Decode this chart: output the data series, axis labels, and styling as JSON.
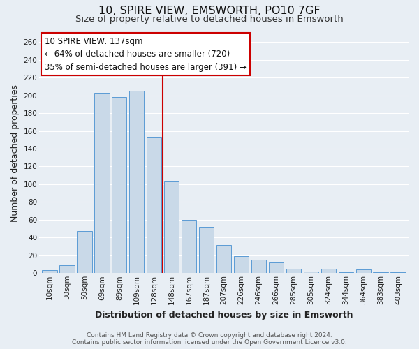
{
  "title": "10, SPIRE VIEW, EMSWORTH, PO10 7GF",
  "subtitle": "Size of property relative to detached houses in Emsworth",
  "xlabel": "Distribution of detached houses by size in Emsworth",
  "ylabel": "Number of detached properties",
  "bar_labels": [
    "10sqm",
    "30sqm",
    "50sqm",
    "69sqm",
    "89sqm",
    "109sqm",
    "128sqm",
    "148sqm",
    "167sqm",
    "187sqm",
    "207sqm",
    "226sqm",
    "246sqm",
    "266sqm",
    "285sqm",
    "305sqm",
    "324sqm",
    "344sqm",
    "364sqm",
    "383sqm",
    "403sqm"
  ],
  "bar_values": [
    3,
    9,
    47,
    203,
    198,
    205,
    153,
    103,
    60,
    52,
    32,
    19,
    15,
    12,
    5,
    2,
    5,
    1,
    4,
    1,
    1
  ],
  "bar_color": "#c9d9e8",
  "bar_edge_color": "#5b9bd5",
  "highlight_bar_index": 6,
  "highlight_line_color": "#cc0000",
  "ylim": [
    0,
    270
  ],
  "yticks": [
    0,
    20,
    40,
    60,
    80,
    100,
    120,
    140,
    160,
    180,
    200,
    220,
    240,
    260
  ],
  "annotation_title": "10 SPIRE VIEW: 137sqm",
  "annotation_line1": "← 64% of detached houses are smaller (720)",
  "annotation_line2": "35% of semi-detached houses are larger (391) →",
  "annotation_box_color": "#ffffff",
  "annotation_box_edge": "#cc0000",
  "footer_line1": "Contains HM Land Registry data © Crown copyright and database right 2024.",
  "footer_line2": "Contains public sector information licensed under the Open Government Licence v3.0.",
  "background_color": "#e8eef4",
  "plot_bg_color": "#e8eef4",
  "grid_color": "#ffffff",
  "title_fontsize": 11.5,
  "subtitle_fontsize": 9.5,
  "axis_label_fontsize": 9,
  "tick_fontsize": 7.5,
  "footer_fontsize": 6.5,
  "annotation_fontsize": 8.5
}
